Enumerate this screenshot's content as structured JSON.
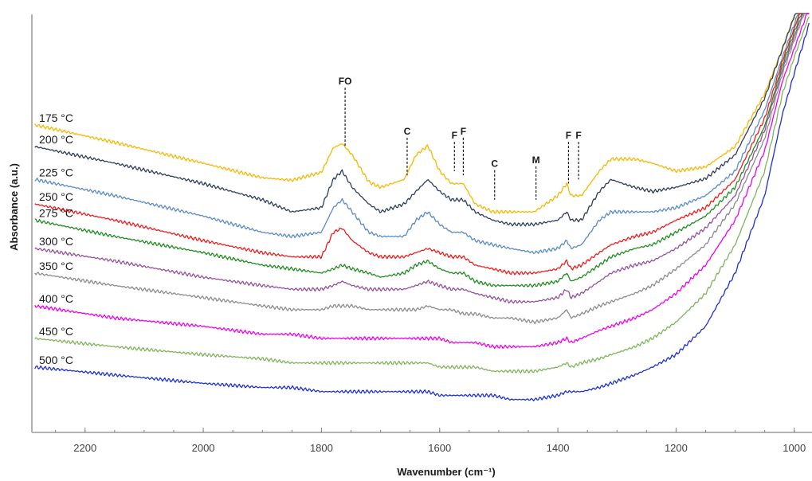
{
  "chart_data": {
    "type": "line",
    "title": "",
    "xlabel": "Wavenumber (cm⁻¹)",
    "ylabel": "Absorbance (a.u.)",
    "x_reversed": true,
    "xlim": [
      2290,
      970
    ],
    "ylim": [
      -0.02,
      1.0
    ],
    "x_ticks": [
      2200,
      2000,
      1800,
      1600,
      1400,
      1200,
      1000
    ],
    "x_tick_labels": [
      "2200",
      "2000",
      "1800",
      "1600",
      "1400",
      "1200",
      "1000"
    ],
    "grid": false,
    "legend": "none",
    "colors": {
      "axis": "#b3b3b3",
      "text": "#1a1a1a",
      "tick_text": "#404040"
    },
    "x_knots": [
      2285,
      2150,
      2000,
      1900,
      1850,
      1800,
      1780,
      1765,
      1748,
      1720,
      1700,
      1660,
      1640,
      1620,
      1600,
      1580,
      1560,
      1540,
      1510,
      1480,
      1440,
      1400,
      1385,
      1378,
      1360,
      1330,
      1310,
      1290,
      1270,
      1240,
      1200,
      1150,
      1100,
      1050,
      1020,
      1000,
      975
    ],
    "series": [
      {
        "name": "175 °C",
        "color": "#f5b800",
        "values": [
          0.719,
          0.677,
          0.627,
          0.592,
          0.586,
          0.605,
          0.664,
          0.674,
          0.647,
          0.582,
          0.569,
          0.588,
          0.647,
          0.669,
          0.608,
          0.578,
          0.578,
          0.529,
          0.51,
          0.51,
          0.51,
          0.549,
          0.578,
          0.549,
          0.549,
          0.608,
          0.637,
          0.637,
          0.637,
          0.627,
          0.608,
          0.618,
          0.667,
          0.794,
          0.902,
          0.98,
          1.078
        ]
      },
      {
        "name": "200 °C",
        "color": "#2e3e59",
        "values": [
          0.667,
          0.627,
          0.578,
          0.539,
          0.51,
          0.52,
          0.588,
          0.608,
          0.569,
          0.529,
          0.51,
          0.529,
          0.559,
          0.588,
          0.559,
          0.539,
          0.539,
          0.51,
          0.49,
          0.48,
          0.48,
          0.49,
          0.51,
          0.49,
          0.49,
          0.559,
          0.588,
          0.578,
          0.569,
          0.559,
          0.569,
          0.59,
          0.647,
          0.784,
          0.902,
          0.98,
          1.078
        ]
      },
      {
        "name": "225 °C",
        "color": "#5b8ac9",
        "values": [
          0.588,
          0.549,
          0.5,
          0.461,
          0.451,
          0.461,
          0.52,
          0.539,
          0.51,
          0.461,
          0.451,
          0.451,
          0.49,
          0.51,
          0.48,
          0.461,
          0.461,
          0.441,
          0.431,
          0.422,
          0.412,
          0.422,
          0.441,
          0.422,
          0.431,
          0.49,
          0.51,
          0.51,
          0.51,
          0.51,
          0.52,
          0.549,
          0.608,
          0.755,
          0.882,
          0.961,
          1.059
        ]
      },
      {
        "name": "250 °C",
        "color": "#ee1c1c",
        "values": [
          0.529,
          0.49,
          0.441,
          0.412,
          0.402,
          0.402,
          0.461,
          0.471,
          0.441,
          0.412,
          0.402,
          0.402,
          0.412,
          0.422,
          0.412,
          0.402,
          0.402,
          0.382,
          0.373,
          0.363,
          0.363,
          0.373,
          0.392,
          0.373,
          0.382,
          0.412,
          0.431,
          0.441,
          0.451,
          0.461,
          0.49,
          0.52,
          0.588,
          0.735,
          0.873,
          0.951,
          1.049
        ]
      },
      {
        "name": "275 °C",
        "color": "#1e8c1e",
        "values": [
          0.49,
          0.451,
          0.412,
          0.382,
          0.373,
          0.363,
          0.373,
          0.382,
          0.373,
          0.363,
          0.353,
          0.363,
          0.382,
          0.392,
          0.373,
          0.363,
          0.363,
          0.343,
          0.333,
          0.333,
          0.333,
          0.343,
          0.363,
          0.343,
          0.353,
          0.382,
          0.402,
          0.412,
          0.422,
          0.431,
          0.461,
          0.5,
          0.569,
          0.716,
          0.863,
          0.941,
          1.039
        ]
      },
      {
        "name": "300 °C",
        "color": "#96509b",
        "values": [
          0.422,
          0.392,
          0.353,
          0.333,
          0.324,
          0.324,
          0.333,
          0.343,
          0.333,
          0.324,
          0.324,
          0.324,
          0.333,
          0.343,
          0.333,
          0.324,
          0.324,
          0.314,
          0.304,
          0.294,
          0.294,
          0.304,
          0.324,
          0.304,
          0.314,
          0.343,
          0.363,
          0.373,
          0.382,
          0.392,
          0.422,
          0.471,
          0.549,
          0.706,
          0.853,
          0.931,
          1.029
        ]
      },
      {
        "name": "350 °C",
        "color": "#8c8c8c",
        "values": [
          0.363,
          0.333,
          0.304,
          0.284,
          0.275,
          0.275,
          0.284,
          0.284,
          0.284,
          0.275,
          0.275,
          0.275,
          0.275,
          0.284,
          0.275,
          0.275,
          0.265,
          0.265,
          0.255,
          0.255,
          0.245,
          0.255,
          0.275,
          0.255,
          0.265,
          0.284,
          0.294,
          0.304,
          0.314,
          0.333,
          0.373,
          0.431,
          0.529,
          0.686,
          0.843,
          0.922,
          1.02
        ]
      },
      {
        "name": "400 °C",
        "color": "#ee00ee",
        "values": [
          0.284,
          0.255,
          0.235,
          0.216,
          0.216,
          0.206,
          0.206,
          0.206,
          0.206,
          0.206,
          0.206,
          0.206,
          0.206,
          0.206,
          0.206,
          0.196,
          0.196,
          0.196,
          0.186,
          0.186,
          0.186,
          0.196,
          0.206,
          0.196,
          0.206,
          0.225,
          0.235,
          0.245,
          0.255,
          0.275,
          0.314,
          0.382,
          0.49,
          0.657,
          0.824,
          0.902,
          1.0
        ]
      },
      {
        "name": "450 °C",
        "color": "#7fb55a",
        "values": [
          0.206,
          0.186,
          0.167,
          0.157,
          0.147,
          0.147,
          0.147,
          0.147,
          0.147,
          0.147,
          0.147,
          0.147,
          0.147,
          0.147,
          0.137,
          0.137,
          0.137,
          0.137,
          0.127,
          0.127,
          0.127,
          0.137,
          0.147,
          0.137,
          0.147,
          0.157,
          0.167,
          0.176,
          0.186,
          0.206,
          0.245,
          0.314,
          0.431,
          0.608,
          0.794,
          0.882,
          0.98
        ]
      },
      {
        "name": "500 °C",
        "color": "#1c2fd9",
        "values": [
          0.137,
          0.118,
          0.098,
          0.088,
          0.088,
          0.078,
          0.078,
          0.078,
          0.078,
          0.078,
          0.078,
          0.078,
          0.078,
          0.078,
          0.069,
          0.069,
          0.069,
          0.069,
          0.069,
          0.059,
          0.059,
          0.069,
          0.078,
          0.078,
          0.078,
          0.088,
          0.098,
          0.108,
          0.118,
          0.137,
          0.167,
          0.235,
          0.363,
          0.549,
          0.745,
          0.843,
          0.961
        ]
      }
    ],
    "annotations": [
      {
        "text": "FO",
        "x": 1760,
        "y_top": 0.816,
        "y_bottom": 0.667
      },
      {
        "text": "C",
        "x": 1655,
        "y_top": 0.696,
        "y_bottom": 0.598
      },
      {
        "text": "F",
        "x": 1575,
        "y_top": 0.686,
        "y_bottom": 0.608
      },
      {
        "text": "F",
        "x": 1560,
        "y_top": 0.696,
        "y_bottom": 0.598
      },
      {
        "text": "C",
        "x": 1507,
        "y_top": 0.618,
        "y_bottom": 0.539
      },
      {
        "text": "M",
        "x": 1437,
        "y_top": 0.627,
        "y_bottom": 0.539
      },
      {
        "text": "F",
        "x": 1382,
        "y_top": 0.686,
        "y_bottom": 0.578
      },
      {
        "text": "F",
        "x": 1365,
        "y_top": 0.686,
        "y_bottom": 0.588
      }
    ]
  }
}
